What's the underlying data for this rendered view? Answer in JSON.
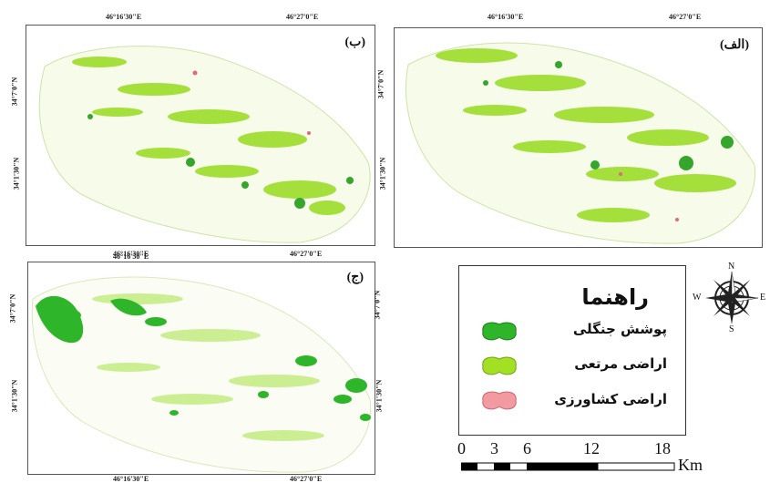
{
  "coords": {
    "lon_a": "46°16'30\"E",
    "lon_b": "46°27'0\"E",
    "lat_a": "34°7'0\"N",
    "lat_b": "34°1'30\"N"
  },
  "panels": {
    "alef": "(الف)",
    "be": "(ب)",
    "jim": "(ج)"
  },
  "legend": {
    "title": "راهنما",
    "items": [
      {
        "label": "پوشش جنگلی",
        "color": "#2fb52a"
      },
      {
        "label": "اراضی مرتعی",
        "color": "#a3e024"
      },
      {
        "label": "اراضی کشاورزی",
        "color": "#f39aa0"
      }
    ]
  },
  "north_arrow": {
    "n": "N",
    "s": "S",
    "e": "E",
    "w": "W"
  },
  "scale_bar": {
    "ticks": [
      "0",
      "3",
      "6",
      "12",
      "18"
    ],
    "unit": "Km"
  }
}
